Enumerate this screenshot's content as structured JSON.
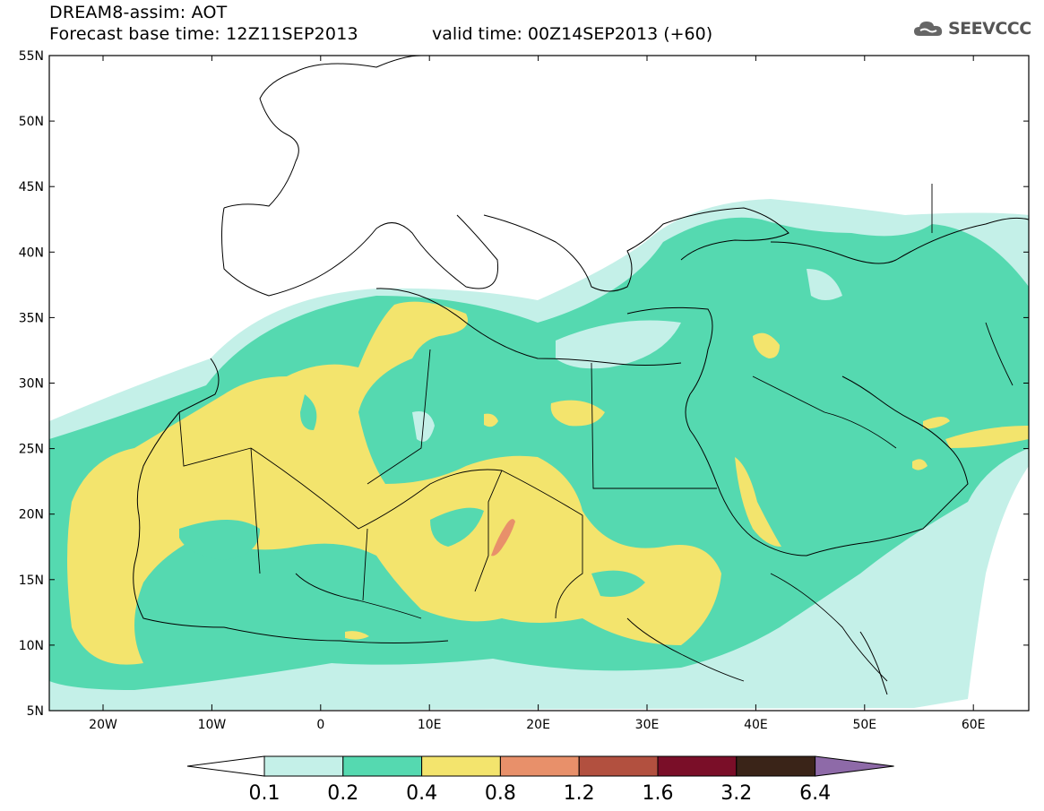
{
  "header": {
    "title": "DREAM8-assim: AOT",
    "base_time": "Forecast base time: 12Z11SEP2013",
    "valid_time": "valid time: 00Z14SEP2013 (+60)"
  },
  "logo": {
    "text": "SEEVCCC",
    "icon": "cloud-icon"
  },
  "map": {
    "lat_labels": [
      "55N",
      "50N",
      "45N",
      "40N",
      "35N",
      "30N",
      "25N",
      "20N",
      "15N",
      "10N",
      "5N"
    ],
    "lon_labels": [
      "20W",
      "10W",
      "0",
      "10E",
      "20E",
      "30E",
      "40E",
      "50E",
      "60E"
    ],
    "colorbar": {
      "levels": [
        "0.1",
        "0.2",
        "0.4",
        "0.8",
        "1.2",
        "1.6",
        "3.2",
        "6.4"
      ],
      "colors": [
        "#ffffff",
        "#c4f0e8",
        "#55d9b0",
        "#f3e46d",
        "#e8906a",
        "#b2503f",
        "#7a0e28",
        "#3a2418",
        "#8e6aa8"
      ]
    }
  }
}
